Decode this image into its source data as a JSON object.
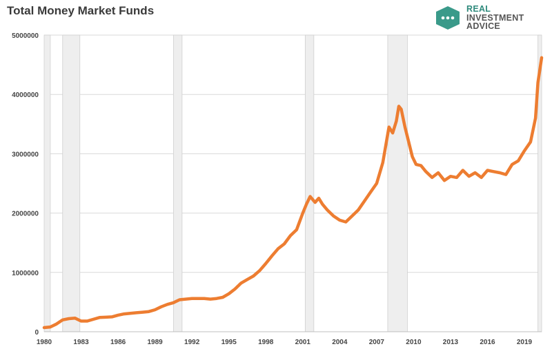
{
  "title": "Total Money Market Funds",
  "logo": {
    "line1": "REAL",
    "line2": "INVESTMENT",
    "line3": "ADVICE",
    "color": "#3a9a8a"
  },
  "colors": {
    "line": "#ed7d31",
    "recession": "#eeeeee",
    "recession_edge": "#cfcfcf",
    "grid": "#d9d9d9"
  },
  "chart_data": {
    "type": "line",
    "title": "Total Money Market Funds",
    "xlabel": "",
    "ylabel": "",
    "xlim": [
      1980,
      2020.4
    ],
    "ylim": [
      0,
      5000000
    ],
    "grid": true,
    "x_ticks": [
      "1980",
      "1983",
      "1986",
      "1989",
      "1992",
      "1995",
      "1998",
      "2001",
      "2004",
      "2007",
      "2010",
      "2013",
      "2016",
      "2019"
    ],
    "y_ticks": [
      "0",
      "1000000",
      "2000000",
      "3000000",
      "4000000",
      "5000000"
    ],
    "recessions": [
      [
        1980.0,
        1980.5
      ],
      [
        1981.5,
        1982.9
      ],
      [
        1990.5,
        1991.2
      ],
      [
        2001.2,
        2001.9
      ],
      [
        2007.9,
        2009.5
      ],
      [
        2020.1,
        2020.4
      ]
    ],
    "series": [
      {
        "x": [
          1980.0,
          1980.5,
          1981.0,
          1981.5,
          1982.0,
          1982.5,
          1983.0,
          1983.5,
          1984.0,
          1984.5,
          1985.0,
          1985.5,
          1986.0,
          1986.5,
          1987.0,
          1987.5,
          1988.0,
          1988.5,
          1989.0,
          1989.5,
          1990.0,
          1990.5,
          1991.0,
          1991.5,
          1992.0,
          1992.5,
          1993.0,
          1993.5,
          1994.0,
          1994.5,
          1995.0,
          1995.5,
          1996.0,
          1996.5,
          1997.0,
          1997.5,
          1998.0,
          1998.5,
          1999.0,
          1999.5,
          2000.0,
          2000.5,
          2001.0,
          2001.3,
          2001.6,
          2002.0,
          2002.3,
          2002.6,
          2003.0,
          2003.5,
          2004.0,
          2004.5,
          2005.0,
          2005.5,
          2006.0,
          2006.5,
          2007.0,
          2007.5,
          2008.0,
          2008.3,
          2008.6,
          2008.8,
          2009.0,
          2009.3,
          2009.6,
          2009.9,
          2010.2,
          2010.6,
          2011.0,
          2011.5,
          2012.0,
          2012.5,
          2013.0,
          2013.5,
          2014.0,
          2014.5,
          2015.0,
          2015.5,
          2016.0,
          2016.5,
          2017.0,
          2017.5,
          2018.0,
          2018.5,
          2019.0,
          2019.5,
          2019.9,
          2020.1,
          2020.4
        ],
        "values": [
          70000,
          80000,
          130000,
          200000,
          220000,
          230000,
          180000,
          180000,
          210000,
          240000,
          245000,
          250000,
          280000,
          300000,
          310000,
          320000,
          330000,
          340000,
          370000,
          420000,
          460000,
          490000,
          540000,
          550000,
          560000,
          560000,
          560000,
          550000,
          560000,
          580000,
          640000,
          720000,
          820000,
          880000,
          940000,
          1030000,
          1150000,
          1280000,
          1400000,
          1480000,
          1620000,
          1720000,
          2000000,
          2150000,
          2280000,
          2180000,
          2250000,
          2150000,
          2050000,
          1950000,
          1880000,
          1850000,
          1950000,
          2050000,
          2200000,
          2350000,
          2500000,
          2850000,
          3450000,
          3350000,
          3550000,
          3800000,
          3750000,
          3450000,
          3200000,
          2950000,
          2820000,
          2800000,
          2700000,
          2600000,
          2680000,
          2550000,
          2620000,
          2600000,
          2720000,
          2620000,
          2680000,
          2600000,
          2720000,
          2700000,
          2680000,
          2650000,
          2820000,
          2880000,
          3050000,
          3200000,
          3600000,
          4200000,
          4620000
        ]
      }
    ]
  }
}
